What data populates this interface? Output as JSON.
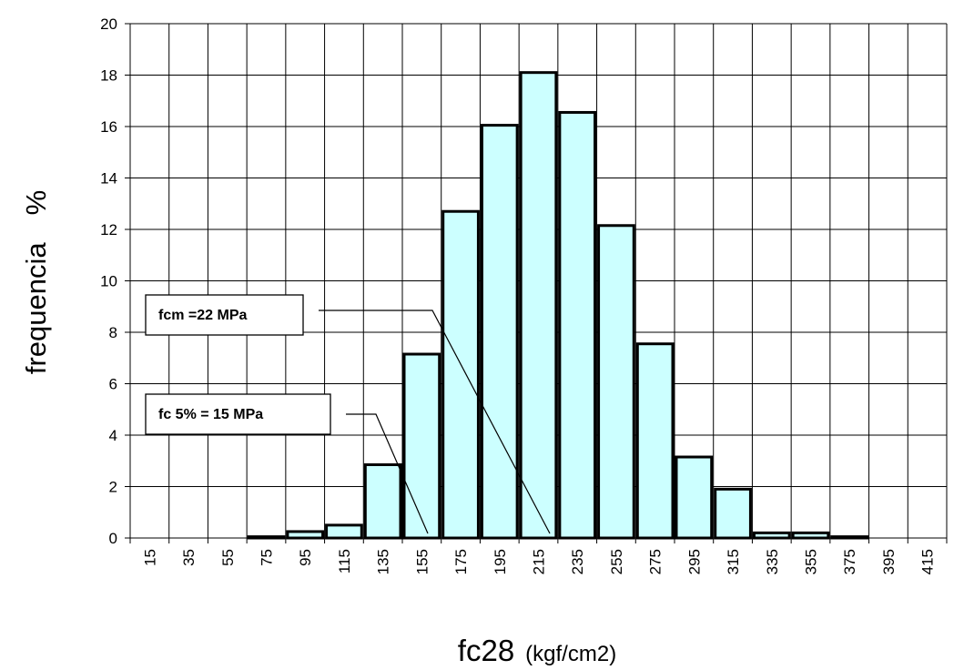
{
  "chart_data": {
    "type": "bar",
    "categories": [
      "15",
      "35",
      "55",
      "75",
      "95",
      "115",
      "135",
      "155",
      "175",
      "195",
      "215",
      "235",
      "255",
      "275",
      "295",
      "315",
      "335",
      "355",
      "375",
      "395",
      "415"
    ],
    "values": [
      0,
      0,
      0,
      0.05,
      0.25,
      0.5,
      2.85,
      7.15,
      12.7,
      16.05,
      18.1,
      16.55,
      12.15,
      7.55,
      3.15,
      1.9,
      0.2,
      0.2,
      0.05,
      0,
      0
    ],
    "y_ticks": [
      "0",
      "2",
      "4",
      "6",
      "8",
      "10",
      "12",
      "14",
      "16",
      "18",
      "20"
    ],
    "ylim": [
      0,
      20
    ],
    "ylabel_main": "frequencia",
    "ylabel_unit": "%",
    "xlabel_main": "fc28",
    "xlabel_unit": "(kgf/cm2)",
    "grid": true,
    "bar_color": "#ccffff",
    "annotations": [
      {
        "label": "fcm =22 MPa",
        "points_to_x": 217
      },
      {
        "label": "fc 5% = 15 MPa",
        "points_to_x": 152
      }
    ]
  }
}
